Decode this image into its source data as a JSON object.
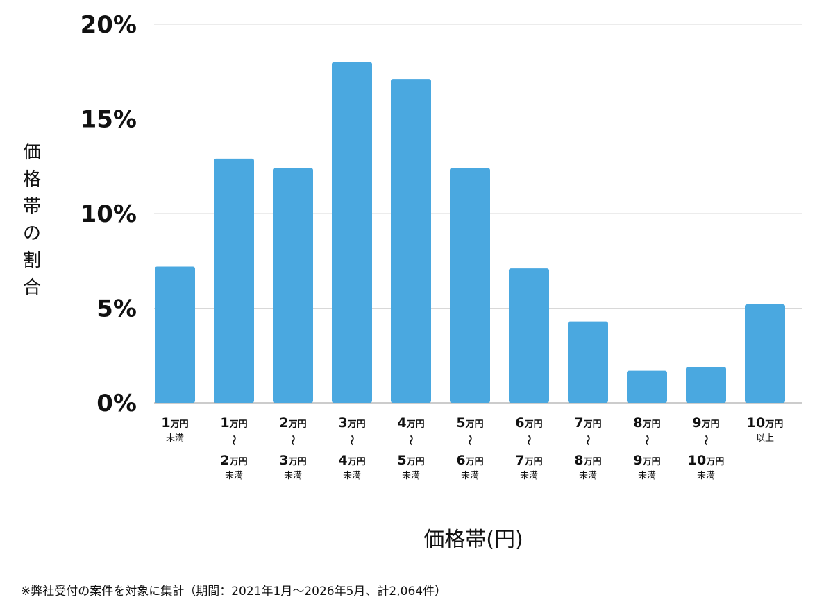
{
  "chart_data": {
    "type": "bar",
    "ylabel": "価格帯の割合",
    "xlabel": "価格帯(円)",
    "ylim": [
      0,
      20
    ],
    "yticks": [
      {
        "value": 0,
        "label": "0%"
      },
      {
        "value": 5,
        "label": "5%"
      },
      {
        "value": 10,
        "label": "10%"
      },
      {
        "value": 15,
        "label": "15%"
      },
      {
        "value": 20,
        "label": "20%"
      }
    ],
    "grid": true,
    "bar_color": "#4aa8e0",
    "categories": [
      {
        "lines": [
          {
            "num": "1",
            "unit": "万円"
          }
        ],
        "suffix": "未満"
      },
      {
        "lines": [
          {
            "num": "1",
            "unit": "万円"
          },
          {
            "num": "2",
            "unit": "万円"
          }
        ],
        "suffix": "未満"
      },
      {
        "lines": [
          {
            "num": "2",
            "unit": "万円"
          },
          {
            "num": "3",
            "unit": "万円"
          }
        ],
        "suffix": "未満"
      },
      {
        "lines": [
          {
            "num": "3",
            "unit": "万円"
          },
          {
            "num": "4",
            "unit": "万円"
          }
        ],
        "suffix": "未満"
      },
      {
        "lines": [
          {
            "num": "4",
            "unit": "万円"
          },
          {
            "num": "5",
            "unit": "万円"
          }
        ],
        "suffix": "未満"
      },
      {
        "lines": [
          {
            "num": "5",
            "unit": "万円"
          },
          {
            "num": "6",
            "unit": "万円"
          }
        ],
        "suffix": "未満"
      },
      {
        "lines": [
          {
            "num": "6",
            "unit": "万円"
          },
          {
            "num": "7",
            "unit": "万円"
          }
        ],
        "suffix": "未満"
      },
      {
        "lines": [
          {
            "num": "7",
            "unit": "万円"
          },
          {
            "num": "8",
            "unit": "万円"
          }
        ],
        "suffix": "未満"
      },
      {
        "lines": [
          {
            "num": "8",
            "unit": "万円"
          },
          {
            "num": "9",
            "unit": "万円"
          }
        ],
        "suffix": "未満"
      },
      {
        "lines": [
          {
            "num": "9",
            "unit": "万円"
          },
          {
            "num": "10",
            "unit": "万円"
          }
        ],
        "suffix": "未満"
      },
      {
        "lines": [
          {
            "num": "10",
            "unit": "万円"
          }
        ],
        "suffix": "以上"
      }
    ],
    "range_symbol": "〜",
    "values": [
      7.2,
      12.9,
      12.4,
      18.0,
      17.1,
      12.4,
      7.1,
      4.3,
      1.7,
      1.9,
      5.2
    ]
  },
  "footnote": "※弊社受付の案件を対象に集計（期間：2021年1月〜2026年5月、計2,064件）"
}
